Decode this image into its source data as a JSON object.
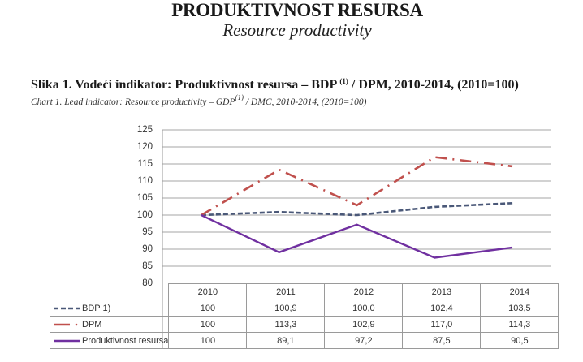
{
  "page": {
    "title": "PRODUKTIVNOST RESURSA",
    "subtitle": "Resource productivity"
  },
  "figure": {
    "heading_pre": "Slika 1. Vodeći indikator: Produktivnost resursa – BDP ",
    "heading_sup": "(1)",
    "heading_post": " / DPM, 2010-2014, (2010=100)",
    "sub_pre": "Chart 1. Lead indicator: Resource productivity – GDP",
    "sub_sup": "(1)",
    "sub_post": " / DMC, 2010-2014, (2010=100)"
  },
  "colors": {
    "bdp": "#4a5878",
    "dpm": "#c0504d",
    "produktivnost": "#7030a0",
    "grid": "#b8b8b8"
  },
  "chart_data": {
    "type": "line",
    "title": "Slika 1. Vodeći indikator: Produktivnost resursa – BDP (1) / DPM, 2010-2014, (2010=100)",
    "subtitle": "Chart 1. Lead indicator: Resource productivity – GDP(1) / DMC, 2010-2014, (2010=100)",
    "xlabel": "",
    "ylabel": "",
    "categories": [
      "2010",
      "2011",
      "2012",
      "2013",
      "2014"
    ],
    "ylim": [
      80,
      125
    ],
    "yticks": [
      "125",
      "120",
      "115",
      "110",
      "105",
      "100",
      "95",
      "90",
      "85",
      "80"
    ],
    "grid": true,
    "legend_position": "data-table",
    "series": [
      {
        "name": "BDP  1)",
        "style": "dashed",
        "values": [
          100,
          100.9,
          100.0,
          102.4,
          103.5
        ],
        "display": [
          "100",
          "100,9",
          "100,0",
          "102,4",
          "103,5"
        ]
      },
      {
        "name": "DPM",
        "style": "dash-dot",
        "values": [
          100,
          113.3,
          102.9,
          117.0,
          114.3
        ],
        "display": [
          "100",
          "113,3",
          "102,9",
          "117,0",
          "114,3"
        ]
      },
      {
        "name": "Produktivnost resursa",
        "style": "solid",
        "values": [
          100,
          89.1,
          97.2,
          87.5,
          90.5
        ],
        "display": [
          "100",
          "89,1",
          "97,2",
          "87,5",
          "90,5"
        ]
      }
    ]
  }
}
